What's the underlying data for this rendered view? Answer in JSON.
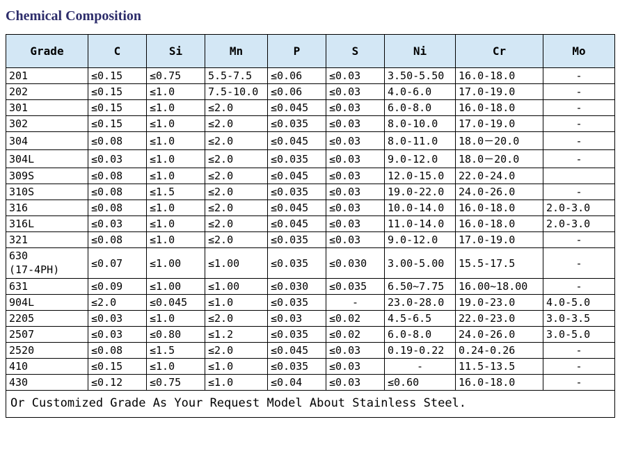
{
  "title": "Chemical Composition",
  "colors": {
    "title_color": "#2d2d6b",
    "header_bg": "#d3e7f5",
    "border": "#000000",
    "text": "#000000",
    "background": "#ffffff"
  },
  "typography": {
    "title_fontsize": 20,
    "header_fontsize": 16,
    "cell_fontsize": 15,
    "footer_fontsize": 17
  },
  "table": {
    "columns": [
      "Grade",
      "C",
      "Si",
      "Mn",
      "P",
      "S",
      "Ni",
      "Cr",
      "Mo"
    ],
    "rows": [
      [
        "201",
        "≤0.15",
        "≤0.75",
        "5.5-7.5",
        "≤0.06",
        "≤0.03",
        "3.50-5.50",
        "16.0-18.0",
        "-"
      ],
      [
        "202",
        "≤0.15",
        "≤1.0",
        "7.5-10.0",
        "≤0.06",
        "≤0.03",
        "4.0-6.0",
        "17.0-19.0",
        "-"
      ],
      [
        "301",
        "≤0.15",
        "≤1.0",
        "≤2.0",
        "≤0.045",
        "≤0.03",
        "6.0-8.0",
        "16.0-18.0",
        "-"
      ],
      [
        "302",
        "≤0.15",
        "≤1.0",
        "≤2.0",
        "≤0.035",
        "≤0.03",
        "8.0-10.0",
        "17.0-19.0",
        "-"
      ],
      [
        "304",
        "≤0.08",
        "≤1.0",
        "≤2.0",
        "≤0.045",
        "≤0.03",
        "8.0-11.0",
        "18.0－20.0",
        "-"
      ],
      [
        "304L",
        "≤0.03",
        "≤1.0",
        "≤2.0",
        "≤0.035",
        "≤0.03",
        "9.0-12.0",
        "18.0－20.0",
        "-"
      ],
      [
        "309S",
        "≤0.08",
        "≤1.0",
        "≤2.0",
        "≤0.045",
        "≤0.03",
        "12.0-15.0",
        "22.0-24.0",
        ""
      ],
      [
        "310S",
        "≤0.08",
        "≤1.5",
        "≤2.0",
        "≤0.035",
        "≤0.03",
        "19.0-22.0",
        "24.0-26.0",
        "-"
      ],
      [
        "316",
        "≤0.08",
        "≤1.0",
        "≤2.0",
        "≤0.045",
        "≤0.03",
        "10.0-14.0",
        "16.0-18.0",
        "2.0-3.0"
      ],
      [
        "316L",
        "≤0.03",
        "≤1.0",
        "≤2.0",
        "≤0.045",
        "≤0.03",
        "11.0-14.0",
        "16.0-18.0",
        "2.0-3.0"
      ],
      [
        "321",
        "≤0.08",
        "≤1.0",
        "≤2.0",
        "≤0.035",
        "≤0.03",
        "9.0-12.0",
        "17.0-19.0",
        "-"
      ],
      [
        "630\n(17-4PH)",
        "≤0.07",
        "≤1.00",
        "≤1.00",
        "≤0.035",
        "≤0.030",
        "3.00-5.00",
        "15.5-17.5",
        "-"
      ],
      [
        "631",
        "≤0.09",
        "≤1.00",
        "≤1.00",
        "≤0.030",
        "≤0.035",
        "6.50~7.75",
        "16.00~18.00",
        "-"
      ],
      [
        "904L",
        "≤2.0",
        "≤0.045",
        "≤1.0",
        "≤0.035",
        "-",
        "23.0-28.0",
        "19.0-23.0",
        "4.0-5.0"
      ],
      [
        "2205",
        "≤0.03",
        "≤1.0",
        "≤2.0",
        "≤0.03",
        "≤0.02",
        "4.5-6.5",
        "22.0-23.0",
        "3.0-3.5"
      ],
      [
        "2507",
        "≤0.03",
        "≤0.80",
        "≤1.2",
        "≤0.035",
        "≤0.02",
        "6.0-8.0",
        "24.0-26.0",
        "3.0-5.0"
      ],
      [
        "2520",
        "≤0.08",
        "≤1.5",
        "≤2.0",
        "≤0.045",
        "≤0.03",
        "0.19-0.22",
        "0.24-0.26",
        "-"
      ],
      [
        "410",
        "≤0.15",
        "≤1.0",
        "≤1.0",
        "≤0.035",
        "≤0.03",
        "-",
        "11.5-13.5",
        "-"
      ],
      [
        "430",
        "≤0.12",
        "≤0.75",
        "≤1.0",
        "≤0.04",
        "≤0.03",
        "≤0.60",
        "16.0-18.0",
        "-"
      ]
    ],
    "footer": "Or Customized Grade As Your Request Model About Stainless Steel.",
    "mo_centered": true
  }
}
